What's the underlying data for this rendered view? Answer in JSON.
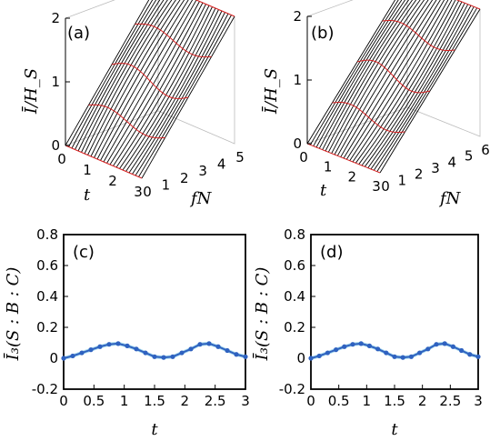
{
  "figure": {
    "labels": {
      "a": "(a)",
      "b": "(b)",
      "c": "(c)",
      "d": "(d)"
    },
    "surface_zlabel": "Ī/H_S",
    "surface_ylabel": "fN",
    "bottom_ylabel": "Ī₃(S : B : C)",
    "t_label": "t"
  },
  "chart_data": [
    {
      "type": "surface",
      "panel": "(a)",
      "x_name": "t",
      "y_name": "fN",
      "z_name": "Ī/H_S",
      "xlim": [
        0,
        3
      ],
      "ylim": [
        0,
        5
      ],
      "zlim": [
        0,
        2
      ],
      "x_ticks": [
        "0",
        "1",
        "2",
        "3"
      ],
      "y_ticks": [
        "0",
        "1",
        "2",
        "3",
        "4",
        "5"
      ],
      "z_ticks": [
        "0",
        "1",
        "2"
      ],
      "description_values": {
        "z_at_fN_0": 0,
        "z_at_fN_max": 2
      }
    },
    {
      "type": "surface",
      "panel": "(b)",
      "x_name": "t",
      "y_name": "fN",
      "z_name": "Ī/H_S",
      "xlim": [
        0,
        3
      ],
      "ylim": [
        0,
        6
      ],
      "zlim": [
        0,
        2
      ],
      "x_ticks": [
        "0",
        "1",
        "2",
        "3"
      ],
      "y_ticks": [
        "0",
        "1",
        "2",
        "3",
        "4",
        "5",
        "6"
      ],
      "z_ticks": [
        "0",
        "1",
        "2"
      ],
      "description_values": {
        "z_at_fN_0": 0,
        "z_at_fN_max": 2
      }
    },
    {
      "type": "line",
      "panel": "(c)",
      "xlabel": "t",
      "ylabel": "Ī₃(S : B : C)",
      "xlim": [
        0,
        3
      ],
      "ylim": [
        -0.2,
        0.8
      ],
      "x_ticks": [
        "0",
        "0.5",
        "1",
        "1.5",
        "2",
        "2.5",
        "3"
      ],
      "y_ticks": [
        "-0.2",
        "0",
        "0.2",
        "0.4",
        "0.6",
        "0.8"
      ],
      "x": [
        0,
        0.15,
        0.3,
        0.45,
        0.6,
        0.75,
        0.9,
        1.05,
        1.2,
        1.35,
        1.5,
        1.65,
        1.8,
        1.95,
        2.1,
        2.25,
        2.4,
        2.55,
        2.7,
        2.85,
        3.0
      ],
      "y": [
        0.0,
        0.015,
        0.035,
        0.055,
        0.075,
        0.09,
        0.095,
        0.08,
        0.06,
        0.035,
        0.01,
        0.005,
        0.01,
        0.035,
        0.06,
        0.09,
        0.095,
        0.075,
        0.05,
        0.025,
        0.01
      ]
    },
    {
      "type": "line",
      "panel": "(d)",
      "xlabel": "t",
      "ylabel": "Ī₃(S : B : C)",
      "xlim": [
        0,
        3
      ],
      "ylim": [
        -0.2,
        0.8
      ],
      "x_ticks": [
        "0",
        "0.5",
        "1",
        "1.5",
        "2",
        "2.5",
        "3"
      ],
      "y_ticks": [
        "-0.2",
        "0",
        "0.2",
        "0.4",
        "0.6",
        "0.8"
      ],
      "x": [
        0,
        0.15,
        0.3,
        0.45,
        0.6,
        0.75,
        0.9,
        1.05,
        1.2,
        1.35,
        1.5,
        1.65,
        1.8,
        1.95,
        2.1,
        2.25,
        2.4,
        2.55,
        2.7,
        2.85,
        3.0
      ],
      "y": [
        0.0,
        0.015,
        0.035,
        0.055,
        0.075,
        0.09,
        0.095,
        0.08,
        0.06,
        0.035,
        0.01,
        0.005,
        0.01,
        0.035,
        0.06,
        0.09,
        0.095,
        0.075,
        0.05,
        0.025,
        0.01
      ]
    }
  ],
  "colors": {
    "line": "#2f62c0",
    "band": "#a7d9ee",
    "surface_mesh": "#000000",
    "surface_accent": "#d82020",
    "axis": "#000000",
    "grid": "#bbbbbb"
  }
}
